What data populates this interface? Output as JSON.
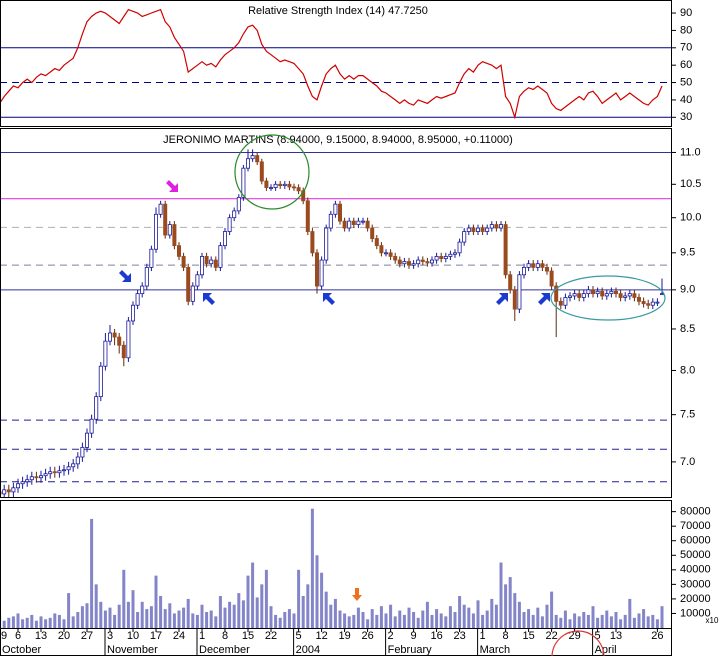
{
  "chart_data": [
    {
      "type": "line",
      "title": "Relative Strength Index (14) 47.7250",
      "color": "#d00000",
      "ylim": [
        25,
        97.5
      ],
      "yticks": [
        30,
        40,
        50,
        60,
        70,
        80,
        90
      ],
      "levels": [
        {
          "value": 70,
          "color": "#000080",
          "style": "solid"
        },
        {
          "value": 50,
          "color": "#000080",
          "style": "dashed"
        },
        {
          "value": 30,
          "color": "#000080",
          "style": "solid"
        }
      ],
      "values": [
        40,
        38,
        42,
        45,
        48,
        47,
        50,
        52,
        50,
        53,
        55,
        54,
        56,
        58,
        57,
        60,
        62,
        64,
        70,
        78,
        85,
        88,
        90,
        91,
        90,
        88,
        86,
        84,
        88,
        92,
        91,
        90,
        88,
        89,
        90,
        91,
        92,
        85,
        82,
        76,
        72,
        68,
        56,
        58,
        60,
        62,
        60,
        61,
        59,
        63,
        66,
        68,
        70,
        73,
        78,
        82,
        83,
        80,
        72,
        68,
        66,
        64,
        62,
        63,
        62,
        61,
        58,
        55,
        48,
        42,
        40,
        48,
        55,
        58,
        60,
        55,
        52,
        54,
        52,
        54,
        54,
        52,
        50,
        48,
        45,
        44,
        42,
        40,
        38,
        40,
        38,
        37,
        40,
        39,
        38,
        40,
        42,
        41,
        42,
        43,
        44,
        50,
        55,
        58,
        56,
        60,
        62,
        61,
        60,
        58,
        60,
        42,
        38,
        30,
        42,
        45,
        47,
        46,
        48,
        46,
        44,
        38,
        35,
        34,
        36,
        38,
        40,
        42,
        40,
        44,
        45,
        42,
        38,
        40,
        42,
        44,
        40,
        42,
        44,
        42,
        40,
        38,
        37,
        40,
        42,
        48
      ]
    },
    {
      "type": "candlestick",
      "title": "JERONIMO MARTINS (8.94000, 9.15000, 8.94000, 8.95000, +0.11000)",
      "log_scale": true,
      "up_color": "#ffffff",
      "down_color": "#9a4a1c",
      "outline_color": "#1a1a9a",
      "ylim": [
        6.65,
        11.4
      ],
      "yticks": [
        {
          "value": 7,
          "label": "7.0"
        },
        7.5,
        {
          "value": 8,
          "label": "8.0"
        },
        8.5,
        {
          "value": 9,
          "label": "9.0"
        },
        9.5,
        {
          "value": 10,
          "label": "10.0"
        },
        10.5,
        {
          "value": 11,
          "label": "11.0"
        }
      ],
      "levels": [
        {
          "value": 11,
          "color": "#3030a0",
          "style": "solid"
        },
        {
          "value": 10.28,
          "color": "#e020e0",
          "style": "solid"
        },
        {
          "value": 9.86,
          "color": "#b0b0b0",
          "style": "dashed"
        },
        {
          "value": 9.33,
          "color": "#8080a0",
          "style": "dashed"
        },
        {
          "value": 9,
          "color": "#3030a0",
          "style": "solid"
        },
        {
          "value": 7.44,
          "color": "#202090",
          "style": "dashed"
        },
        {
          "value": 7.13,
          "color": "#202090",
          "style": "dashed"
        },
        {
          "value": 6.8,
          "color": "#202090",
          "style": "dashed"
        }
      ],
      "open": [
        6.72,
        6.7,
        6.68,
        6.72,
        6.7,
        6.74,
        6.78,
        6.8,
        6.82,
        6.85,
        6.84,
        6.86,
        6.88,
        6.9,
        6.89,
        6.91,
        6.92,
        6.95,
        6.98,
        7.05,
        7.15,
        7.3,
        7.45,
        7.7,
        8.05,
        8.35,
        8.45,
        8.4,
        8.3,
        8.15,
        8.6,
        8.8,
        8.95,
        9.05,
        9.3,
        9.55,
        10.05,
        10.2,
        9.75,
        9.9,
        9.6,
        9.45,
        9.3,
        8.85,
        9.05,
        9.2,
        9.45,
        9.35,
        9.4,
        9.3,
        9.6,
        9.8,
        10.0,
        10.1,
        10.3,
        10.75,
        10.9,
        10.95,
        10.85,
        10.55,
        10.45,
        10.45,
        10.5,
        10.48,
        10.5,
        10.46,
        10.45,
        10.4,
        10.25,
        9.8,
        9.5,
        9.05,
        9.4,
        9.85,
        10.05,
        10.2,
        9.95,
        9.85,
        9.95,
        9.9,
        9.95,
        9.95,
        9.85,
        9.7,
        9.6,
        9.5,
        9.5,
        9.45,
        9.4,
        9.35,
        9.38,
        9.33,
        9.35,
        9.4,
        9.38,
        9.36,
        9.4,
        9.45,
        9.42,
        9.45,
        9.48,
        9.5,
        9.65,
        9.8,
        9.85,
        9.8,
        9.85,
        9.8,
        9.85,
        9.9,
        9.85,
        9.9,
        9.2,
        9.0,
        8.75,
        9.2,
        9.3,
        9.35,
        9.3,
        9.35,
        9.3,
        9.25,
        9.05,
        8.85,
        8.8,
        8.9,
        8.92,
        8.95,
        8.9,
        8.95,
        9.0,
        8.95,
        8.98,
        8.92,
        8.95,
        8.98,
        8.95,
        8.9,
        8.92,
        8.95,
        8.9,
        8.85,
        8.82,
        8.8,
        8.84,
        8.94
      ],
      "high": [
        6.77,
        6.75,
        6.77,
        6.77,
        6.79,
        6.83,
        6.85,
        6.87,
        6.9,
        6.9,
        6.91,
        6.93,
        6.95,
        6.95,
        6.96,
        6.97,
        7.0,
        7.03,
        7.1,
        7.2,
        7.35,
        7.5,
        7.75,
        8.1,
        8.45,
        8.55,
        8.5,
        8.45,
        8.35,
        8.65,
        8.85,
        9.0,
        9.1,
        9.35,
        9.6,
        10.15,
        10.25,
        10.25,
        9.95,
        9.95,
        9.65,
        9.5,
        9.35,
        9.1,
        9.25,
        9.5,
        9.5,
        9.45,
        9.45,
        9.65,
        9.85,
        10.05,
        10.15,
        10.35,
        10.8,
        11.05,
        11.05,
        11.0,
        10.9,
        10.6,
        10.5,
        10.55,
        10.55,
        10.55,
        10.55,
        10.51,
        10.5,
        10.45,
        10.3,
        9.85,
        9.55,
        9.45,
        9.9,
        10.1,
        10.25,
        10.25,
        10.0,
        10.0,
        10.0,
        10.0,
        10.0,
        10.0,
        9.9,
        9.75,
        9.65,
        9.55,
        9.55,
        9.5,
        9.45,
        9.43,
        9.43,
        9.4,
        9.45,
        9.45,
        9.43,
        9.45,
        9.5,
        9.5,
        9.5,
        9.53,
        9.55,
        9.7,
        9.85,
        9.9,
        9.9,
        9.9,
        9.9,
        9.9,
        9.95,
        9.95,
        9.95,
        9.95,
        9.25,
        9.05,
        9.25,
        9.35,
        9.4,
        9.4,
        9.4,
        9.4,
        9.35,
        9.3,
        9.1,
        8.9,
        8.95,
        8.97,
        9.0,
        9.0,
        9.0,
        9.05,
        9.05,
        9.03,
        9.03,
        9.0,
        9.03,
        9.03,
        9.0,
        8.97,
        9.0,
        9.0,
        8.95,
        8.9,
        8.87,
        8.89,
        8.89,
        9.15
      ],
      "low": [
        6.65,
        6.63,
        6.63,
        6.65,
        6.65,
        6.69,
        6.73,
        6.75,
        6.77,
        6.79,
        6.79,
        6.81,
        6.83,
        6.84,
        6.84,
        6.86,
        6.87,
        6.9,
        6.93,
        7.0,
        7.1,
        7.25,
        7.4,
        7.65,
        8.0,
        8.3,
        8.3,
        8.2,
        8.05,
        8.1,
        8.55,
        8.75,
        8.9,
        9.0,
        9.25,
        9.5,
        10.0,
        9.7,
        9.7,
        9.55,
        9.4,
        9.25,
        8.8,
        8.8,
        9.0,
        9.15,
        9.3,
        9.3,
        9.25,
        9.25,
        9.55,
        9.75,
        9.95,
        10.05,
        10.25,
        10.7,
        10.85,
        10.8,
        10.5,
        10.4,
        10.4,
        10.4,
        10.43,
        10.43,
        10.41,
        10.4,
        10.35,
        10.2,
        9.75,
        9.45,
        8.95,
        9.0,
        9.35,
        9.8,
        10.0,
        9.9,
        9.8,
        9.8,
        9.85,
        9.85,
        9.9,
        9.8,
        9.65,
        9.55,
        9.45,
        9.45,
        9.4,
        9.35,
        9.3,
        9.3,
        9.28,
        9.28,
        9.3,
        9.33,
        9.31,
        9.31,
        9.35,
        9.37,
        9.37,
        9.4,
        9.43,
        9.45,
        9.6,
        9.75,
        9.75,
        9.75,
        9.75,
        9.75,
        9.8,
        9.8,
        9.8,
        9.15,
        8.95,
        8.6,
        8.7,
        9.15,
        9.25,
        9.25,
        9.25,
        9.25,
        9.2,
        9.0,
        8.4,
        8.75,
        8.75,
        8.85,
        8.87,
        8.85,
        8.85,
        8.9,
        8.9,
        8.9,
        8.87,
        8.87,
        8.9,
        8.9,
        8.85,
        8.85,
        8.87,
        8.85,
        8.8,
        8.77,
        8.75,
        8.75,
        8.79,
        8.94
      ],
      "close": [
        6.7,
        6.68,
        6.72,
        6.7,
        6.74,
        6.78,
        6.8,
        6.82,
        6.85,
        6.84,
        6.86,
        6.88,
        6.9,
        6.89,
        6.91,
        6.92,
        6.95,
        6.98,
        7.05,
        7.15,
        7.3,
        7.45,
        7.7,
        8.05,
        8.35,
        8.45,
        8.4,
        8.3,
        8.15,
        8.6,
        8.8,
        8.95,
        9.05,
        9.3,
        9.55,
        10.05,
        10.2,
        9.75,
        9.9,
        9.6,
        9.45,
        9.3,
        8.85,
        9.05,
        9.2,
        9.45,
        9.35,
        9.4,
        9.3,
        9.6,
        9.8,
        10.0,
        10.1,
        10.3,
        10.75,
        10.9,
        10.95,
        10.85,
        10.55,
        10.45,
        10.45,
        10.5,
        10.48,
        10.5,
        10.46,
        10.45,
        10.4,
        10.25,
        9.8,
        9.5,
        9.05,
        9.4,
        9.85,
        10.05,
        10.2,
        9.95,
        9.85,
        9.95,
        9.9,
        9.95,
        9.95,
        9.85,
        9.7,
        9.6,
        9.5,
        9.5,
        9.45,
        9.4,
        9.35,
        9.38,
        9.33,
        9.35,
        9.4,
        9.38,
        9.36,
        9.4,
        9.45,
        9.42,
        9.45,
        9.48,
        9.5,
        9.65,
        9.8,
        9.85,
        9.8,
        9.85,
        9.8,
        9.85,
        9.9,
        9.85,
        9.9,
        9.2,
        9.0,
        8.75,
        9.2,
        9.3,
        9.35,
        9.3,
        9.35,
        9.3,
        9.25,
        9.05,
        8.85,
        8.8,
        8.9,
        8.92,
        8.95,
        8.9,
        8.95,
        9.0,
        8.95,
        8.98,
        8.92,
        8.95,
        8.98,
        8.95,
        8.9,
        8.92,
        8.95,
        8.9,
        8.85,
        8.82,
        8.8,
        8.84,
        8.84,
        8.95
      ]
    },
    {
      "type": "bar",
      "color": "#8484c8",
      "unit_label": "x10",
      "ylim": [
        0,
        88000
      ],
      "yticks": [
        10000,
        20000,
        30000,
        40000,
        50000,
        60000,
        70000,
        80000
      ],
      "categories": [
        "9",
        null,
        null,
        null,
        null,
        "6",
        null,
        null,
        null,
        null,
        "13",
        null,
        null,
        null,
        null,
        "20",
        null,
        null,
        null,
        null,
        "27",
        null,
        null,
        null,
        null,
        "3",
        null,
        null,
        null,
        null,
        "10",
        null,
        null,
        null,
        null,
        "17",
        null,
        null,
        null,
        null,
        "24",
        null,
        null,
        null,
        null,
        "1",
        null,
        null,
        null,
        null,
        "8",
        null,
        null,
        null,
        null,
        "15",
        null,
        null,
        null,
        null,
        "22",
        null,
        null,
        null,
        null,
        null,
        "5",
        null,
        null,
        null,
        null,
        "12",
        null,
        null,
        null,
        null,
        "19",
        null,
        null,
        null,
        null,
        "26",
        null,
        null,
        null,
        null,
        "2",
        null,
        null,
        null,
        null,
        "9",
        null,
        null,
        null,
        null,
        "16",
        null,
        null,
        null,
        null,
        "23",
        null,
        null,
        null,
        null,
        "1",
        null,
        null,
        null,
        null,
        "8",
        null,
        null,
        null,
        null,
        "15",
        null,
        null,
        null,
        null,
        "22",
        null,
        null,
        null,
        null,
        "29",
        null,
        null,
        null,
        null,
        "5",
        null,
        null,
        null,
        "13",
        null,
        null,
        null,
        null,
        null,
        null,
        null,
        null,
        "26",
        null
      ],
      "months": [
        "October",
        null,
        null,
        null,
        null,
        null,
        null,
        null,
        null,
        null,
        null,
        null,
        null,
        null,
        null,
        null,
        null,
        null,
        null,
        null,
        null,
        null,
        null,
        null,
        null,
        "November",
        null,
        null,
        null,
        null,
        null,
        null,
        null,
        null,
        null,
        null,
        null,
        null,
        null,
        null,
        null,
        null,
        null,
        null,
        null,
        "December",
        null,
        null,
        null,
        null,
        null,
        null,
        null,
        null,
        null,
        null,
        null,
        null,
        null,
        null,
        null,
        null,
        null,
        null,
        null,
        null,
        "2004",
        null,
        null,
        null,
        null,
        null,
        null,
        null,
        null,
        null,
        null,
        null,
        null,
        null,
        null,
        null,
        null,
        null,
        null,
        null,
        "February",
        null,
        null,
        null,
        null,
        null,
        null,
        null,
        null,
        null,
        null,
        null,
        null,
        null,
        null,
        null,
        null,
        null,
        null,
        null,
        "March",
        null,
        null,
        null,
        null,
        null,
        null,
        null,
        null,
        null,
        null,
        null,
        null,
        null,
        null,
        null,
        null,
        null,
        null,
        null,
        null,
        null,
        null,
        null,
        null,
        "April",
        null,
        null,
        null,
        null,
        null,
        null,
        null,
        null,
        null,
        null,
        null,
        null,
        null,
        null
      ],
      "values": [
        6000,
        9000,
        5000,
        7000,
        8000,
        10000,
        6000,
        7000,
        9000,
        5000,
        8000,
        6000,
        7000,
        10000,
        9000,
        6000,
        24000,
        8000,
        11000,
        15000,
        17000,
        75000,
        30000,
        18000,
        12000,
        14000,
        9000,
        16000,
        40000,
        18000,
        26000,
        11000,
        18000,
        13000,
        15000,
        36000,
        22000,
        13000,
        17000,
        10000,
        12000,
        14000,
        20000,
        10000,
        9000,
        16000,
        11000,
        12000,
        8000,
        22000,
        14000,
        18000,
        16000,
        24000,
        19000,
        36000,
        45000,
        21000,
        30000,
        40000,
        15000,
        9000,
        7000,
        11000,
        13000,
        10000,
        40000,
        22000,
        30000,
        82000,
        50000,
        38000,
        25000,
        16000,
        20000,
        12000,
        10000,
        8000,
        9000,
        14000,
        11000,
        6000,
        13000,
        9000,
        15000,
        10000,
        16000,
        8000,
        12000,
        9000,
        14000,
        11000,
        7000,
        12000,
        18000,
        9000,
        13000,
        10000,
        8000,
        15000,
        11000,
        22000,
        16000,
        14000,
        10000,
        19000,
        9000,
        12000,
        20000,
        16000,
        45000,
        30000,
        35000,
        24000,
        18000,
        11000,
        13000,
        9000,
        14000,
        8000,
        16000,
        25000,
        9000,
        7000,
        12000,
        6000,
        10000,
        8000,
        11000,
        9000,
        15000,
        7000,
        9000,
        12000,
        8000,
        11000,
        6000,
        9000,
        20000,
        7000,
        10000,
        13000,
        8000,
        9000,
        6000,
        15000
      ]
    }
  ]
}
